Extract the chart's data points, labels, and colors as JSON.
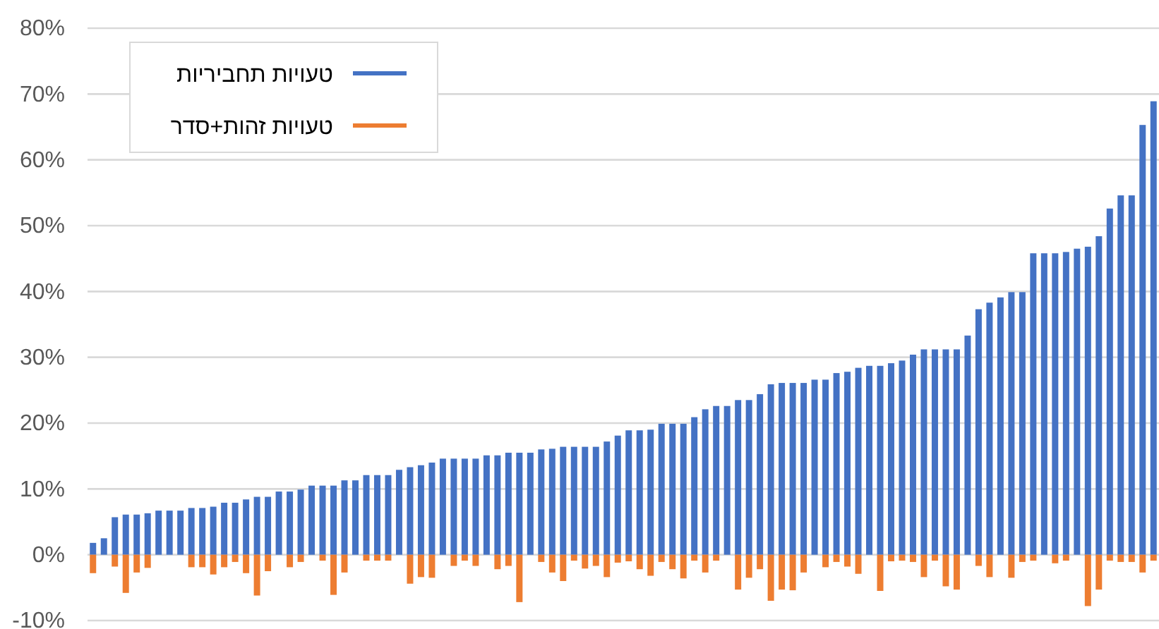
{
  "chart_data": {
    "type": "bar",
    "categories": [
      null,
      null,
      null,
      null,
      null,
      null,
      null,
      null,
      null,
      null,
      null,
      null,
      null,
      null,
      null,
      null,
      null,
      null,
      null,
      null,
      null,
      null,
      null,
      null,
      null,
      null,
      null,
      null,
      null,
      null,
      null,
      null,
      null,
      null,
      null,
      null,
      null,
      null,
      null,
      null,
      null,
      null,
      null,
      null,
      null,
      null,
      null,
      null,
      null,
      null,
      null,
      null,
      null,
      null,
      null,
      null,
      null,
      null,
      null,
      null,
      null,
      null,
      null,
      null,
      null,
      null,
      null,
      null,
      null,
      null,
      null,
      null,
      null,
      null,
      null,
      null,
      null,
      null,
      null,
      null,
      null,
      null,
      null,
      null,
      null,
      null,
      null,
      null,
      null,
      null,
      null,
      null,
      null,
      null,
      null,
      null,
      null,
      null
    ],
    "series": [
      {
        "name": "טעויות תחביריות",
        "color": "#4472c4",
        "values": [
          1.8,
          2.5,
          5.7,
          6.1,
          6.1,
          6.3,
          6.7,
          6.7,
          6.7,
          7.1,
          7.1,
          7.3,
          7.9,
          7.9,
          8.4,
          8.8,
          8.8,
          9.6,
          9.6,
          9.9,
          10.5,
          10.5,
          10.5,
          11.3,
          11.3,
          12.1,
          12.1,
          12.1,
          12.9,
          13.3,
          13.6,
          14.0,
          14.6,
          14.6,
          14.6,
          14.6,
          15.1,
          15.1,
          15.5,
          15.5,
          15.5,
          16.0,
          16.1,
          16.4,
          16.4,
          16.4,
          16.4,
          17.2,
          18.1,
          18.9,
          18.9,
          19.0,
          19.9,
          19.9,
          19.9,
          20.9,
          22.1,
          22.6,
          22.6,
          23.5,
          23.5,
          24.4,
          25.9,
          26.1,
          26.1,
          26.1,
          26.6,
          26.6,
          27.6,
          27.8,
          28.4,
          28.7,
          28.7,
          29.1,
          29.5,
          30.4,
          31.2,
          31.2,
          31.2,
          31.2,
          33.3,
          37.3,
          38.3,
          39.1,
          39.9,
          39.9,
          45.8,
          45.8,
          45.8,
          46.0,
          46.5,
          46.8,
          48.4,
          52.6,
          54.6,
          54.6,
          65.3,
          68.9
        ]
      },
      {
        "name": "טעויות זהות+סדר",
        "color": "#ed7d31",
        "values": [
          -2.8,
          0,
          -1.8,
          -5.8,
          -2.7,
          -2.0,
          0,
          0,
          0,
          -1.9,
          -1.9,
          -3.0,
          -1.9,
          -1.1,
          -2.8,
          -6.2,
          -2.5,
          0,
          -1.9,
          -1.1,
          0,
          -0.9,
          -6.1,
          -2.7,
          0,
          -0.9,
          -0.9,
          -0.9,
          0,
          -4.4,
          -3.4,
          -3.5,
          0,
          -1.7,
          -0.9,
          -1.7,
          0,
          -2.2,
          -1.7,
          -7.2,
          0,
          -1.1,
          -2.7,
          -4.0,
          -0.9,
          -2.1,
          -1.7,
          -3.4,
          -1.2,
          -1.0,
          -2.2,
          -3.2,
          -1.1,
          -2.2,
          -3.6,
          -0.9,
          -2.7,
          -0.9,
          0,
          -5.3,
          -3.5,
          -2.2,
          -7.0,
          -5.3,
          -5.4,
          -2.7,
          0,
          -1.9,
          -1.1,
          -1.8,
          -2.9,
          0,
          -5.5,
          -1.0,
          -0.9,
          -1.1,
          -3.4,
          -0.9,
          -4.8,
          -5.3,
          0,
          -1.7,
          -3.4,
          0,
          -3.5,
          -1.1,
          -0.9,
          0,
          -1.3,
          -0.9,
          0,
          -7.8,
          -5.3,
          -0.9,
          -1.1,
          -1.1,
          -2.7,
          -0.9
        ]
      }
    ],
    "ylim": [
      -10,
      80
    ],
    "yticks": [
      {
        "value": -10,
        "label": "-10%"
      },
      {
        "value": 0,
        "label": "0%"
      },
      {
        "value": 10,
        "label": "10%"
      },
      {
        "value": 20,
        "label": "20%"
      },
      {
        "value": 30,
        "label": "30%"
      },
      {
        "value": 40,
        "label": "40%"
      },
      {
        "value": 50,
        "label": "50%"
      },
      {
        "value": 60,
        "label": "60%"
      },
      {
        "value": 70,
        "label": "70%"
      },
      {
        "value": 80,
        "label": "80%"
      }
    ],
    "grid": "y",
    "legend": "top left",
    "stacked": true
  }
}
